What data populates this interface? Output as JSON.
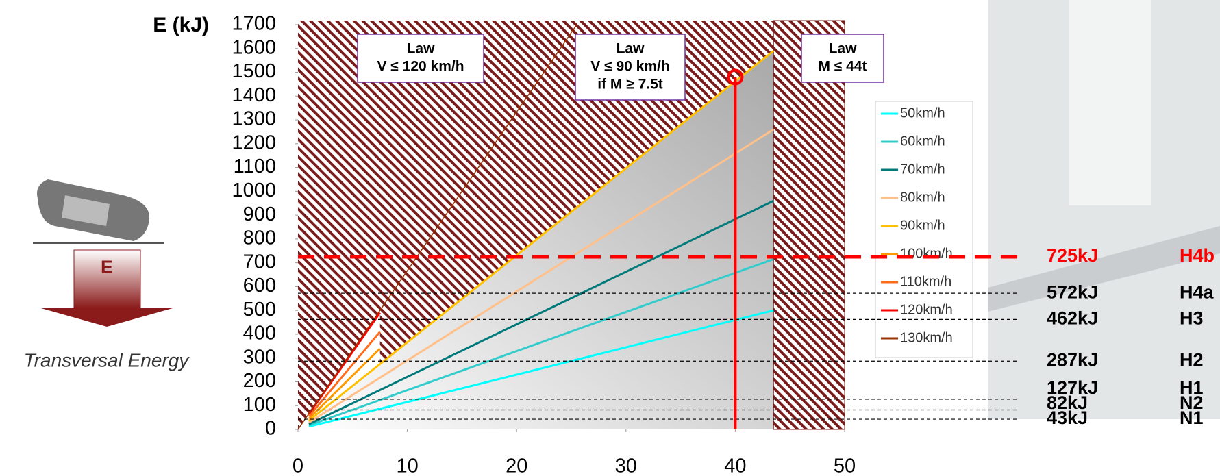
{
  "chart_data": {
    "type": "line",
    "y_label": "E (kJ)",
    "xlim": [
      0,
      50
    ],
    "xticks": [
      0,
      10,
      20,
      30,
      40,
      50
    ],
    "ylim": [
      0,
      1700
    ],
    "yticks": [
      0,
      100,
      200,
      300,
      400,
      500,
      600,
      700,
      800,
      900,
      1000,
      1100,
      1200,
      1300,
      1400,
      1500,
      1600,
      1700
    ],
    "series": [
      {
        "name": "50km/h",
        "color": "#00ffff",
        "x": [
          1,
          43.5
        ],
        "values": [
          12,
          500
        ]
      },
      {
        "name": "60km/h",
        "color": "#33cccc",
        "x": [
          1,
          43.5
        ],
        "values": [
          17,
          715
        ]
      },
      {
        "name": "70km/h",
        "color": "#007a7a",
        "x": [
          1,
          43.5
        ],
        "values": [
          22,
          960
        ]
      },
      {
        "name": "80km/h",
        "color": "#ffc08a",
        "x": [
          1,
          43.5
        ],
        "values": [
          29,
          1260
        ]
      },
      {
        "name": "90km/h",
        "color": "#ffc000",
        "x": [
          1,
          43.5
        ],
        "values": [
          37,
          1590
        ]
      },
      {
        "name": "100km/h",
        "color": "#ff9900",
        "x": [
          1,
          7.5
        ],
        "values": [
          45,
          340
        ]
      },
      {
        "name": "110km/h",
        "color": "#ff6a1a",
        "x": [
          1,
          7.5
        ],
        "values": [
          55,
          410
        ]
      },
      {
        "name": "120km/h",
        "color": "#ff0000",
        "x": [
          1,
          7.5
        ],
        "values": [
          65,
          490
        ]
      },
      {
        "name": "130km/h",
        "color": "#993300",
        "x": [
          0,
          25.5
        ],
        "values": [
          0,
          1700
        ]
      }
    ],
    "levels": {
      "values": [
        43,
        82,
        127,
        287,
        462,
        572,
        725
      ],
      "value_labels": [
        "43kJ",
        "82kJ",
        "127kJ",
        "287kJ",
        "462kJ",
        "572kJ",
        "725kJ"
      ],
      "classes": [
        "N1",
        "N2",
        "H1",
        "H2",
        "H3",
        "H4a",
        "H4b"
      ]
    },
    "marker": {
      "x": 40,
      "value": 1480
    },
    "annotations": [
      {
        "lines": [
          "Law",
          "V ≤ 120 km/h"
        ]
      },
      {
        "lines": [
          "Law",
          "V ≤ 90 km/h",
          "if M ≥ 7.5t"
        ]
      },
      {
        "lines": [
          "Law",
          "M ≤ 44t"
        ]
      }
    ],
    "illustration": {
      "arrow_label": "E",
      "caption": "Transversal Energy"
    }
  }
}
